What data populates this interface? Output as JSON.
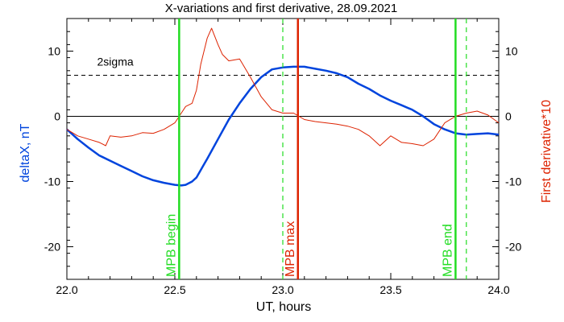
{
  "chart_data": {
    "type": "line",
    "title": "X-variations and first derivative, 28.09.2021",
    "xlabel": "UT, hours",
    "ylabel_left": "deltaX, nT",
    "ylabel_right": "First derivative*10",
    "xlim": [
      22.0,
      24.0
    ],
    "ylim": [
      -25,
      15
    ],
    "x_ticks": [
      "22.0",
      "22.5",
      "23.0",
      "23.5",
      "24.0"
    ],
    "y_ticks_left": [
      "10",
      "0",
      "-10",
      "-20"
    ],
    "y_ticks_right": [
      "10",
      "0",
      "-10",
      "-20"
    ],
    "colors": {
      "deltax": "#0044dd",
      "derivative": "#dd2200",
      "mpb_begin_end": "#22dd22",
      "mpb_max": "#dd2200",
      "axes": "#000000"
    },
    "annotation": {
      "label": "2sigma",
      "y": 6.3
    },
    "zero_line": 0,
    "markers": [
      {
        "label": "MPB begin",
        "x": 22.52,
        "style": "solid",
        "color": "#22dd22"
      },
      {
        "label": "",
        "x": 23.0,
        "style": "dashed",
        "color": "#22dd22"
      },
      {
        "label": "MPB max",
        "x": 23.07,
        "style": "solid",
        "color": "#dd2200"
      },
      {
        "label": "MPB end",
        "x": 23.8,
        "style": "solid",
        "color": "#22dd22"
      },
      {
        "label": "",
        "x": 23.85,
        "style": "dashed",
        "color": "#22dd22"
      }
    ],
    "series": [
      {
        "key": "deltax",
        "color": "#0044dd",
        "x": [
          22.0,
          22.05,
          22.1,
          22.15,
          22.2,
          22.25,
          22.3,
          22.35,
          22.4,
          22.45,
          22.5,
          22.53,
          22.55,
          22.58,
          22.6,
          22.65,
          22.7,
          22.75,
          22.8,
          22.85,
          22.9,
          22.95,
          23.0,
          23.05,
          23.1,
          23.15,
          23.2,
          23.25,
          23.3,
          23.35,
          23.4,
          23.45,
          23.5,
          23.55,
          23.6,
          23.65,
          23.7,
          23.75,
          23.8,
          23.85,
          23.9,
          23.95,
          24.0
        ],
        "values": [
          -2.0,
          -3.5,
          -4.8,
          -6.0,
          -6.8,
          -7.6,
          -8.4,
          -9.2,
          -9.8,
          -10.2,
          -10.5,
          -10.6,
          -10.5,
          -10.0,
          -9.4,
          -6.5,
          -3.5,
          -0.5,
          2.0,
          4.2,
          6.0,
          7.2,
          7.5,
          7.6,
          7.6,
          7.3,
          7.0,
          6.6,
          6.0,
          5.0,
          4.2,
          3.2,
          2.4,
          1.7,
          1.0,
          0.0,
          -1.2,
          -2.0,
          -2.6,
          -2.8,
          -2.7,
          -2.6,
          -2.8
        ]
      },
      {
        "key": "derivative",
        "color": "#dd2200",
        "x": [
          22.0,
          22.05,
          22.1,
          22.15,
          22.18,
          22.2,
          22.25,
          22.3,
          22.35,
          22.4,
          22.45,
          22.5,
          22.52,
          22.55,
          22.58,
          22.6,
          22.62,
          22.65,
          22.67,
          22.7,
          22.72,
          22.75,
          22.8,
          22.85,
          22.9,
          22.95,
          23.0,
          23.05,
          23.1,
          23.15,
          23.2,
          23.25,
          23.3,
          23.35,
          23.4,
          23.45,
          23.5,
          23.55,
          23.6,
          23.65,
          23.7,
          23.75,
          23.8,
          23.85,
          23.9,
          23.95,
          24.0
        ],
        "values": [
          -2.0,
          -3.0,
          -3.5,
          -4.0,
          -4.5,
          -3.0,
          -3.2,
          -3.0,
          -2.5,
          -2.6,
          -2.0,
          -1.0,
          0.0,
          1.5,
          2.0,
          4.0,
          8.0,
          12.0,
          13.5,
          11.0,
          9.5,
          8.5,
          8.8,
          6.0,
          3.0,
          1.0,
          0.5,
          0.5,
          -0.5,
          -0.8,
          -1.0,
          -1.2,
          -1.5,
          -2.0,
          -3.0,
          -4.5,
          -3.0,
          -4.0,
          -4.2,
          -4.5,
          -3.5,
          -1.0,
          0.0,
          0.5,
          0.8,
          0.2,
          -1.0
        ]
      }
    ]
  }
}
